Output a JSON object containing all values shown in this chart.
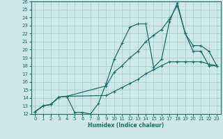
{
  "xlabel": "Humidex (Indice chaleur)",
  "background_color": "#cce8e8",
  "grid_color": "#aacfcf",
  "line_color": "#1a6e6e",
  "xlim": [
    -0.5,
    23.5
  ],
  "ylim": [
    12,
    26
  ],
  "xticks": [
    0,
    1,
    2,
    3,
    4,
    5,
    6,
    7,
    8,
    9,
    10,
    11,
    12,
    13,
    14,
    15,
    16,
    17,
    18,
    19,
    20,
    21,
    22,
    23
  ],
  "yticks": [
    12,
    13,
    14,
    15,
    16,
    17,
    18,
    19,
    20,
    21,
    22,
    23,
    24,
    25,
    26
  ],
  "line1_x": [
    0,
    1,
    2,
    3,
    4,
    5,
    6,
    7,
    8,
    9,
    10,
    11,
    12,
    13,
    14,
    15,
    16,
    17,
    18,
    19,
    20,
    21,
    22,
    23
  ],
  "line1_y": [
    12.3,
    13.0,
    13.2,
    14.1,
    14.2,
    12.2,
    12.2,
    12.0,
    13.3,
    15.8,
    18.8,
    20.8,
    22.8,
    23.2,
    23.2,
    17.8,
    18.8,
    23.5,
    25.8,
    22.0,
    19.8,
    19.8,
    18.0,
    18.0
  ],
  "line2_x": [
    0,
    1,
    2,
    3,
    4,
    9,
    10,
    11,
    12,
    13,
    14,
    15,
    16,
    17,
    18,
    19,
    20,
    21,
    22,
    23
  ],
  "line2_y": [
    12.3,
    13.0,
    13.2,
    14.1,
    14.2,
    15.5,
    17.2,
    18.0,
    19.0,
    19.8,
    21.0,
    21.8,
    22.5,
    23.8,
    25.5,
    22.0,
    20.5,
    20.5,
    19.8,
    18.0
  ],
  "line3_x": [
    0,
    1,
    2,
    3,
    4,
    9,
    10,
    11,
    12,
    13,
    14,
    15,
    16,
    17,
    18,
    19,
    20,
    21,
    22,
    23
  ],
  "line3_y": [
    12.3,
    13.0,
    13.2,
    14.1,
    14.2,
    14.3,
    14.8,
    15.3,
    15.8,
    16.3,
    17.0,
    17.5,
    18.0,
    18.5,
    18.5,
    18.5,
    18.5,
    18.5,
    18.2,
    18.0
  ]
}
